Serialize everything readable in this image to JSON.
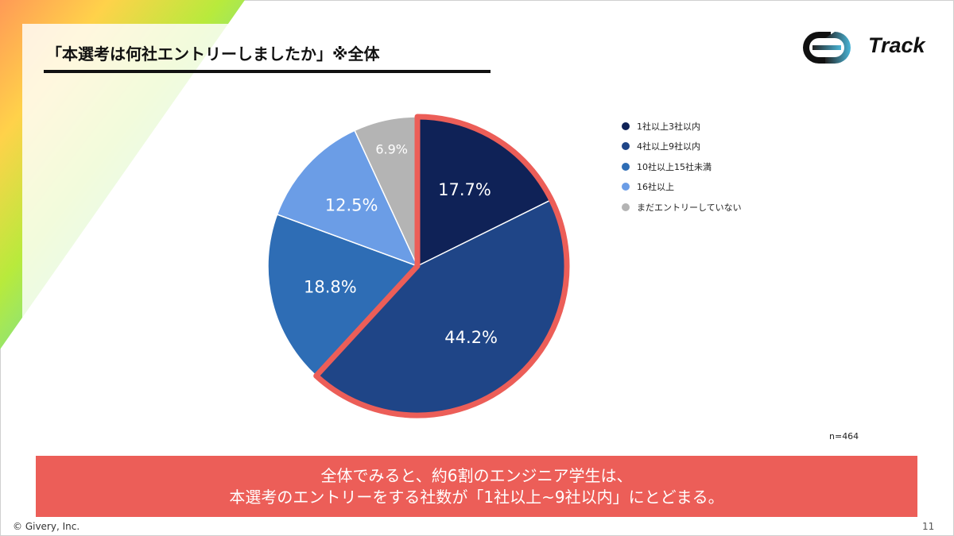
{
  "slide": {
    "title": "「本選考は何社エントリーしましたか」※全体",
    "brand": "Track",
    "copyright": "© Givery, Inc.",
    "page_number": "11"
  },
  "chart_data": {
    "type": "pie",
    "categories": [
      "1社以上3社以内",
      "4社以上9社以内",
      "10社以上15社未満",
      "16社以上",
      "まだエントリーしていない"
    ],
    "values": [
      17.7,
      44.2,
      18.8,
      12.5,
      6.9
    ],
    "data_labels": [
      "17.7%",
      "44.2%",
      "18.8%",
      "12.5%",
      "6.9%"
    ],
    "colors": [
      "#0f2257",
      "#1f4587",
      "#2e6db5",
      "#6b9de6",
      "#b4b4b4"
    ],
    "highlight_color": "#ec5e58",
    "highlighted": [
      "1社以上3社以内",
      "4社以上9社以内"
    ],
    "legend_position": "right",
    "note": "n=464"
  },
  "summary": {
    "line1": "全体でみると、約6割のエンジニア学生は、",
    "line2": "本選考のエントリーをする社数が「1社以上~9社以内」にとどまる。"
  }
}
